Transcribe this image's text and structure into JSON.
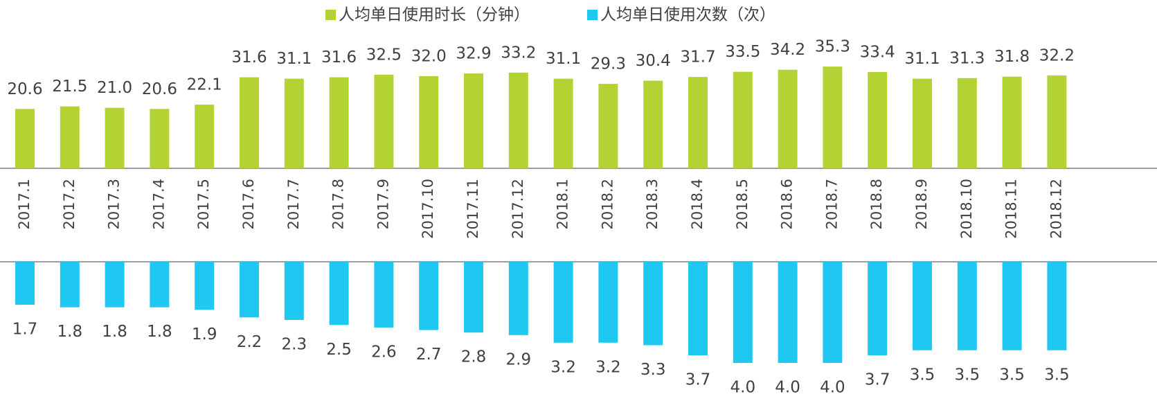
{
  "chart_data": {
    "type": "bar",
    "categories": [
      "2017.1",
      "2017.2",
      "2017.3",
      "2017.4",
      "2017.5",
      "2017.6",
      "2017.7",
      "2017.8",
      "2017.9",
      "2017.10",
      "2017.11",
      "2017.12",
      "2018.1",
      "2018.2",
      "2018.3",
      "2018.4",
      "2018.5",
      "2018.6",
      "2018.7",
      "2018.8",
      "2018.9",
      "2018.10",
      "2018.11",
      "2018.12"
    ],
    "series": [
      {
        "name": "人均单日使用时长（分钟）",
        "color": "#b3d334",
        "values": [
          20.6,
          21.5,
          21,
          20.6,
          22.1,
          31.6,
          31.1,
          31.6,
          32.5,
          32,
          32.9,
          33.2,
          31.1,
          29.3,
          30.4,
          31.7,
          33.5,
          34.2,
          35.3,
          33.4,
          31.1,
          31.3,
          31.8,
          32.2
        ],
        "value_labels": [
          "20.6",
          "21.5",
          "21.0",
          "20.6",
          "22.1",
          "31.6",
          "31.1",
          "31.6",
          "32.5",
          "32.0",
          "32.9",
          "33.2",
          "31.1",
          "29.3",
          "30.4",
          "31.7",
          "33.5",
          "34.2",
          "35.3",
          "33.4",
          "31.1",
          "31.3",
          "31.8",
          "32.2"
        ]
      },
      {
        "name": "人均单日使用次数（次）",
        "color": "#1fc8f0",
        "values": [
          1.7,
          1.8,
          1.8,
          1.8,
          1.9,
          2.2,
          2.3,
          2.5,
          2.6,
          2.7,
          2.8,
          2.9,
          3.2,
          3.2,
          3.3,
          3.7,
          4,
          4,
          4,
          3.7,
          3.5,
          3.5,
          3.5,
          3.5
        ],
        "value_labels": [
          "1.7",
          "1.8",
          "1.8",
          "1.8",
          "1.9",
          "2.2",
          "2.3",
          "2.5",
          "2.6",
          "2.7",
          "2.8",
          "2.9",
          "3.2",
          "3.2",
          "3.3",
          "3.7",
          "4.0",
          "4.0",
          "4.0",
          "3.7",
          "3.5",
          "3.5",
          "3.5",
          "3.5"
        ]
      }
    ]
  }
}
